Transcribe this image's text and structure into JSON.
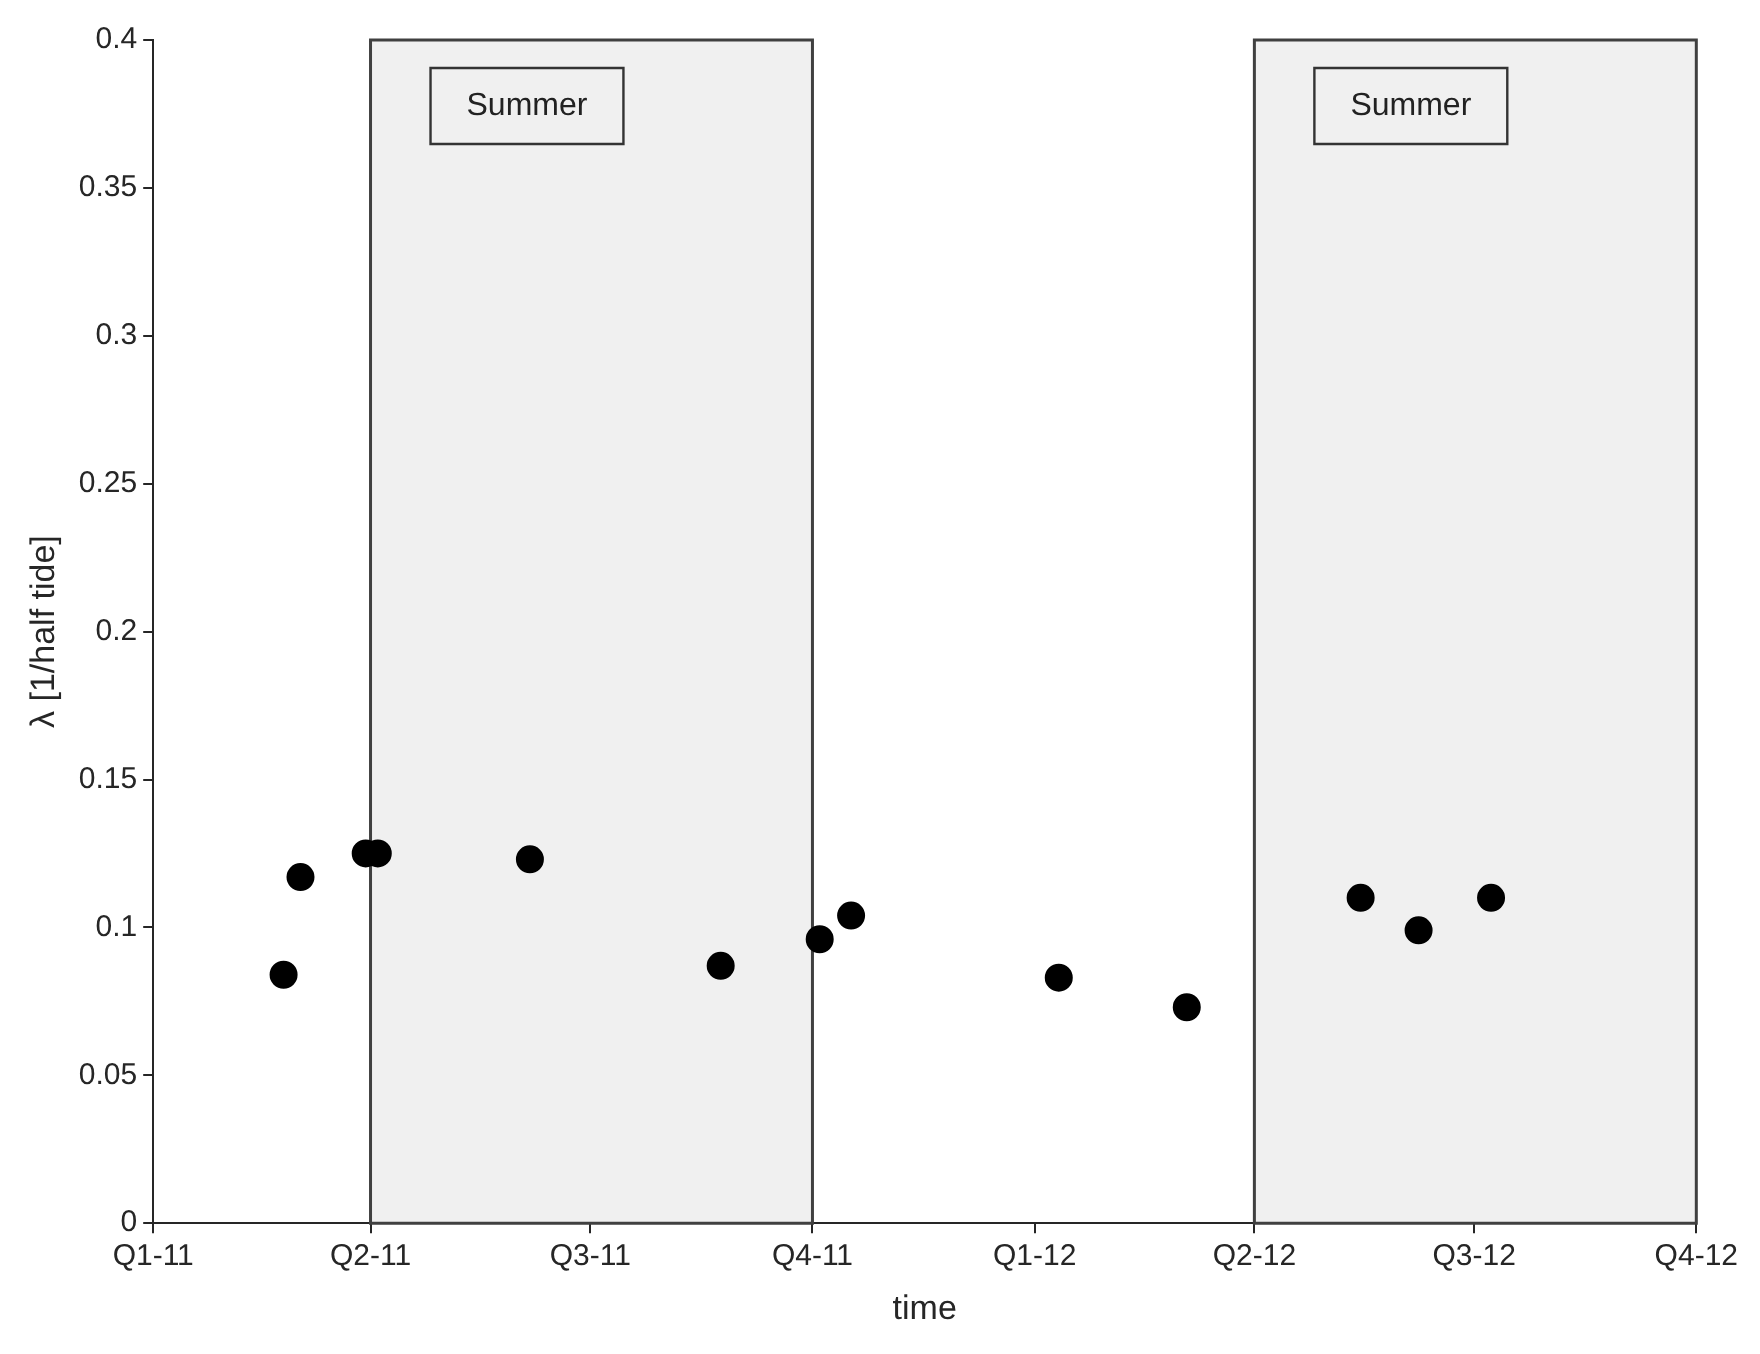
{
  "chart_data": {
    "type": "scatter",
    "xlabel": "time",
    "ylabel": "λ [1/half tide]",
    "x": [
      "2011-02-24",
      "2011-03-03",
      "2011-03-30",
      "2011-04-04",
      "2011-06-06",
      "2011-08-24",
      "2011-10-04",
      "2011-10-17",
      "2012-01-11",
      "2012-03-04",
      "2012-05-15",
      "2012-06-08",
      "2012-07-08"
    ],
    "series": [
      {
        "color": "#000000",
        "values": [
          0.084,
          0.117,
          0.125,
          0.125,
          0.123,
          0.087,
          0.096,
          0.104,
          0.083,
          0.073,
          0.11,
          0.099,
          0.11
        ]
      }
    ],
    "xlim": [
      "2011-01-01",
      "2012-10-01"
    ],
    "xticks": [
      {
        "value": "2011-01-01",
        "label": "Q1-11"
      },
      {
        "value": "2011-04-01",
        "label": "Q2-11"
      },
      {
        "value": "2011-07-01",
        "label": "Q3-11"
      },
      {
        "value": "2011-10-01",
        "label": "Q4-11"
      },
      {
        "value": "2012-01-01",
        "label": "Q1-12"
      },
      {
        "value": "2012-04-01",
        "label": "Q2-12"
      },
      {
        "value": "2012-07-01",
        "label": "Q3-12"
      },
      {
        "value": "2012-10-01",
        "label": "Q4-12"
      }
    ],
    "ylim": [
      0,
      0.4
    ],
    "yticks": [
      0,
      0.05,
      0.1,
      0.15,
      0.2,
      0.25,
      0.3,
      0.35,
      0.4
    ],
    "bands": [
      {
        "axis": "x",
        "from": "2011-04-01",
        "to": "2011-10-01",
        "label": "Summer",
        "color": "#f0f0f0"
      },
      {
        "axis": "x",
        "from": "2012-04-01",
        "to": "2012-10-01",
        "label": "Summer",
        "color": "#f0f0f0"
      }
    ],
    "marker": "circle",
    "grid": false,
    "legend": false
  }
}
